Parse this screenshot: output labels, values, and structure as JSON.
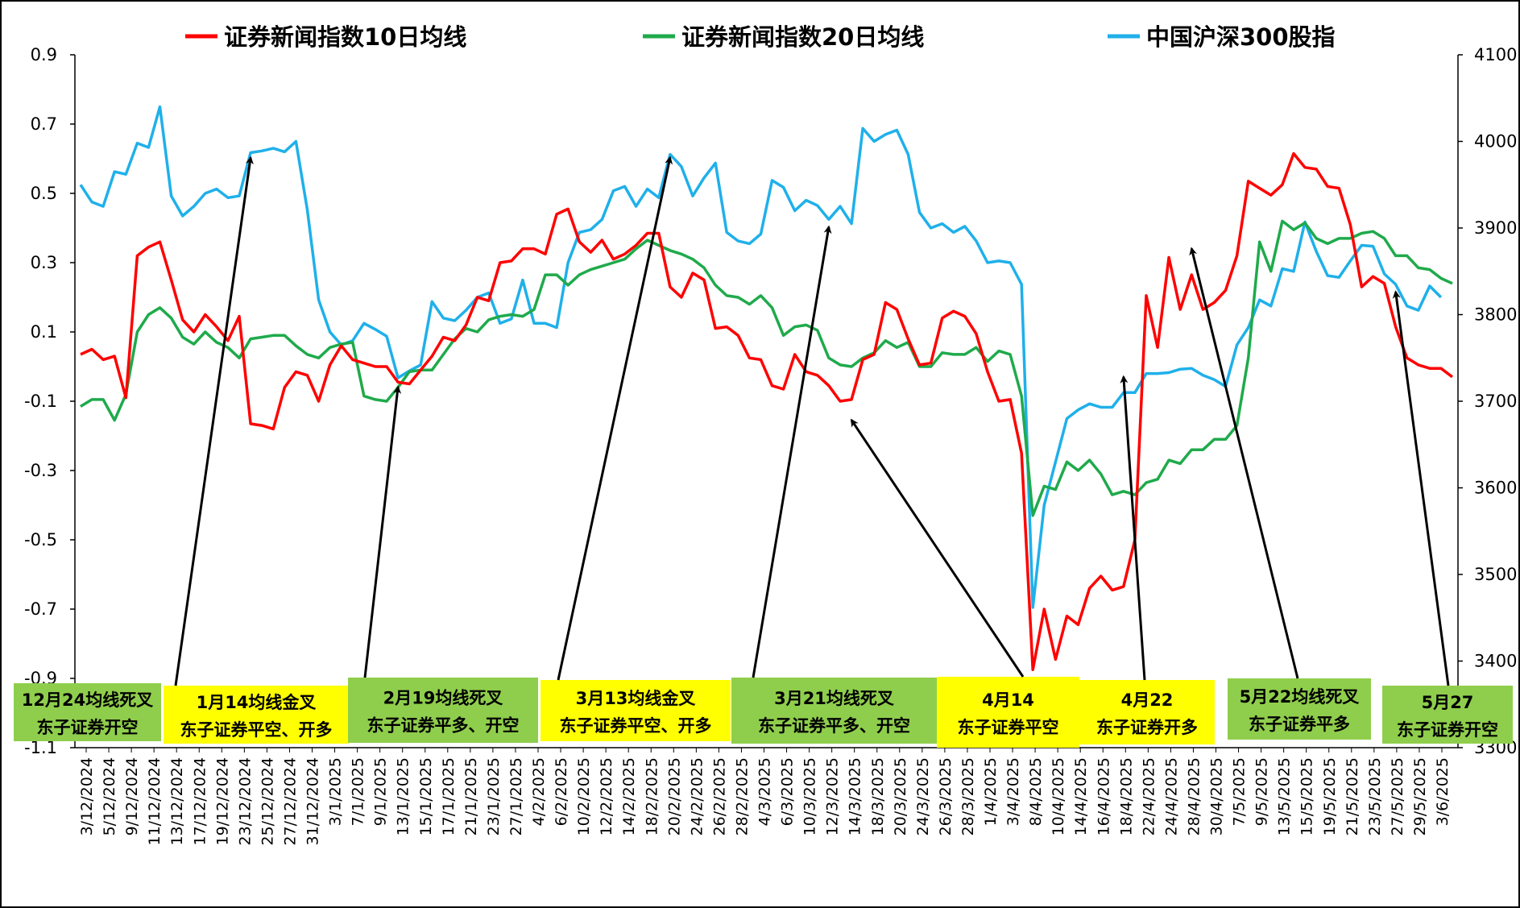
{
  "chart_data": {
    "type": "line",
    "legend_position": "top",
    "grid": false,
    "colors": {
      "ma10": "#ff0000",
      "ma20": "#1faa4b",
      "hs300": "#1fb0ea",
      "annotation_yellow": "#ffff00",
      "annotation_green": "#8fce4c",
      "arrow": "#000000"
    },
    "y_left": {
      "ylim": [
        -1.1,
        0.9
      ],
      "ticks": [
        "0.9",
        "0.7",
        "0.5",
        "0.3",
        "0.1",
        "-0.1",
        "-0.3",
        "-0.5",
        "-0.7",
        "-0.9",
        "-1.1"
      ],
      "tick_values": [
        0.9,
        0.7,
        0.5,
        0.3,
        0.1,
        -0.1,
        -0.3,
        -0.5,
        -0.7,
        -0.9,
        -1.1
      ]
    },
    "y_right": {
      "ylim": [
        3300,
        4100
      ],
      "ticks": [
        "4100",
        "4000",
        "3900",
        "3800",
        "3700",
        "3600",
        "3500",
        "3400",
        "3300"
      ],
      "tick_values": [
        4100,
        4000,
        3900,
        3800,
        3700,
        3600,
        3500,
        3400,
        3300
      ]
    },
    "x_labels": [
      "3/12/2024",
      "5/12/2024",
      "9/12/2024",
      "11/12/2024",
      "13/12/2024",
      "17/12/2024",
      "19/12/2024",
      "23/12/2024",
      "25/12/2024",
      "27/12/2024",
      "31/12/2024",
      "3/1/2025",
      "7/1/2025",
      "9/1/2025",
      "13/1/2025",
      "15/1/2025",
      "17/1/2025",
      "21/1/2025",
      "23/1/2025",
      "27/1/2025",
      "4/2/2025",
      "6/2/2025",
      "10/2/2025",
      "12/2/2025",
      "14/2/2025",
      "18/2/2025",
      "20/2/2025",
      "24/2/2025",
      "26/2/2025",
      "28/2/2025",
      "4/3/2025",
      "6/3/2025",
      "10/3/2025",
      "12/3/2025",
      "14/3/2025",
      "18/3/2025",
      "20/3/2025",
      "24/3/2025",
      "26/3/2025",
      "28/3/2025",
      "1/4/2025",
      "3/4/2025",
      "8/4/2025",
      "10/4/2025",
      "14/4/2025",
      "16/4/2025",
      "18/4/2025",
      "22/4/2025",
      "24/4/2025",
      "28/4/2025",
      "30/4/2025",
      "7/5/2025",
      "9/5/2025",
      "13/5/2025",
      "15/5/2025",
      "19/5/2025",
      "21/5/2025",
      "23/5/2025",
      "27/5/2025",
      "29/5/2025",
      "3/6/2025"
    ],
    "series": [
      {
        "name": "证券新闻指数10日均线",
        "axis": "left",
        "values": [
          0.035,
          0.05,
          0.02,
          0.03,
          -0.09,
          0.32,
          0.345,
          0.36,
          0.25,
          0.135,
          0.1,
          0.15,
          0.115,
          0.075,
          0.145,
          -0.165,
          -0.17,
          -0.18,
          -0.06,
          -0.015,
          -0.025,
          -0.1,
          0.005,
          0.06,
          0.02,
          0.01,
          0.0,
          0.0,
          -0.045,
          -0.05,
          -0.01,
          0.03,
          0.085,
          0.075,
          0.12,
          0.2,
          0.19,
          0.3,
          0.305,
          0.34,
          0.34,
          0.325,
          0.44,
          0.455,
          0.36,
          0.33,
          0.365,
          0.31,
          0.325,
          0.35,
          0.385,
          0.385,
          0.23,
          0.2,
          0.27,
          0.25,
          0.11,
          0.115,
          0.09,
          0.025,
          0.02,
          -0.055,
          -0.065,
          0.035,
          -0.015,
          -0.025,
          -0.055,
          -0.1,
          -0.095,
          0.02,
          0.035,
          0.185,
          0.165,
          0.08,
          0.005,
          0.01,
          0.14,
          0.16,
          0.145,
          0.095,
          -0.015,
          -0.1,
          -0.095,
          -0.25,
          -0.875,
          -0.7,
          -0.845,
          -0.72,
          -0.745,
          -0.64,
          -0.605,
          -0.645,
          -0.635,
          -0.5,
          0.205,
          0.055,
          0.315,
          0.165,
          0.265,
          0.165,
          0.185,
          0.22,
          0.32,
          0.535,
          0.515,
          0.495,
          0.525,
          0.615,
          0.575,
          0.57,
          0.52,
          0.515,
          0.41,
          0.23,
          0.26,
          0.24,
          0.115,
          0.025,
          0.005,
          -0.005,
          -0.005,
          -0.03
        ]
      },
      {
        "name": "证券新闻指数20日均线",
        "axis": "left",
        "values": [
          -0.115,
          -0.095,
          -0.095,
          -0.155,
          -0.08,
          0.1,
          0.15,
          0.17,
          0.14,
          0.085,
          0.065,
          0.1,
          0.07,
          0.055,
          0.025,
          0.08,
          0.085,
          0.09,
          0.09,
          0.06,
          0.035,
          0.025,
          0.055,
          0.065,
          0.07,
          -0.085,
          -0.095,
          -0.1,
          -0.06,
          -0.015,
          -0.01,
          -0.01,
          0.035,
          0.08,
          0.11,
          0.1,
          0.135,
          0.145,
          0.15,
          0.145,
          0.165,
          0.265,
          0.265,
          0.235,
          0.265,
          0.28,
          0.29,
          0.3,
          0.31,
          0.34,
          0.365,
          0.35,
          0.335,
          0.325,
          0.31,
          0.285,
          0.235,
          0.205,
          0.2,
          0.18,
          0.205,
          0.17,
          0.09,
          0.115,
          0.12,
          0.105,
          0.025,
          0.005,
          0.0,
          0.025,
          0.04,
          0.075,
          0.055,
          0.07,
          0.0,
          0.0,
          0.04,
          0.035,
          0.035,
          0.055,
          0.015,
          0.045,
          0.035,
          -0.085,
          -0.43,
          -0.345,
          -0.355,
          -0.275,
          -0.3,
          -0.27,
          -0.31,
          -0.37,
          -0.36,
          -0.37,
          -0.335,
          -0.325,
          -0.27,
          -0.28,
          -0.24,
          -0.24,
          -0.21,
          -0.21,
          -0.17,
          0.025,
          0.36,
          0.275,
          0.42,
          0.395,
          0.415,
          0.37,
          0.355,
          0.37,
          0.37,
          0.385,
          0.39,
          0.37,
          0.32,
          0.32,
          0.285,
          0.28,
          0.255,
          0.24
        ]
      },
      {
        "name": "中国沪深300股指",
        "axis": "right",
        "values": [
          3950,
          3930,
          3925,
          3965,
          3962,
          3998,
          3993,
          4040,
          3937,
          3914,
          3925,
          3940,
          3945,
          3935,
          3937,
          3987,
          3989,
          3992,
          3988,
          4000,
          3921,
          3817,
          3780,
          3765,
          3770,
          3790,
          3783,
          3775,
          3727,
          3735,
          3742,
          3815,
          3796,
          3793,
          3805,
          3820,
          3825,
          3790,
          3795,
          3840,
          3790,
          3790,
          3785,
          3860,
          3895,
          3898,
          3910,
          3943,
          3948,
          3925,
          3945,
          3935,
          3985,
          3971,
          3937,
          3958,
          3975,
          3895,
          3885,
          3882,
          3893,
          3955,
          3947,
          3920,
          3932,
          3926,
          3910,
          3925,
          3905,
          4015,
          4000,
          4008,
          4013,
          3985,
          3918,
          3900,
          3905,
          3895,
          3902,
          3885,
          3860,
          3862,
          3860,
          3835,
          3462,
          3580,
          3630,
          3680,
          3690,
          3697,
          3693,
          3693,
          3710,
          3710,
          3732,
          3732,
          3733,
          3737,
          3738,
          3730,
          3725,
          3717,
          3765,
          3785,
          3817,
          3810,
          3853,
          3850,
          3907,
          3873,
          3845,
          3843,
          3862,
          3880,
          3879,
          3847,
          3835,
          3810,
          3805,
          3833,
          3820
        ]
      }
    ],
    "annotations": [
      {
        "line1": "12月24均线死叉",
        "line2": "东子证券开空",
        "color": "green",
        "arrow_target_value": null
      },
      {
        "line1": "1月14均线金叉",
        "line2": "东子证券平空、开多",
        "color": "yellow",
        "arrow_target_value": 3985
      },
      {
        "line1": "2月19均线死叉",
        "line2": "东子证券平多、开空",
        "color": "green",
        "arrow_target_value": 3720
      },
      {
        "line1": "3月13均线金叉",
        "line2": "东子证券平空、开多",
        "color": "yellow",
        "arrow_target_value": 3985
      },
      {
        "line1": "3月21均线死叉",
        "line2": "东子证券平多、开空",
        "color": "green",
        "arrow_target_value": 3905
      },
      {
        "line1": "4月14",
        "line2": "东子证券平空",
        "color": "yellow",
        "arrow_target_value": 3682
      },
      {
        "line1": "4月22",
        "line2": "东子证券开多",
        "color": "yellow",
        "arrow_target_value": 3732
      },
      {
        "line1": "5月22均线死叉",
        "line2": "东子证券平多",
        "color": "green",
        "arrow_target_value": 3880
      },
      {
        "line1": "5月27",
        "line2": "东子证券开空",
        "color": "green",
        "arrow_target_value": 3830
      }
    ]
  }
}
